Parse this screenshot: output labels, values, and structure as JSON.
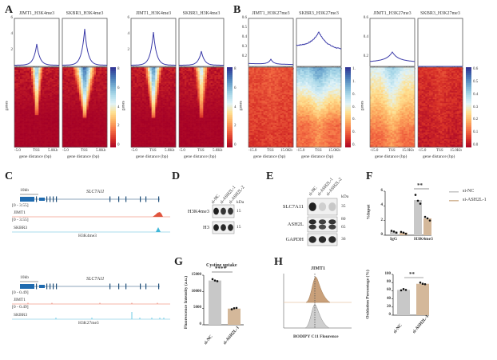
{
  "panels": {
    "A": {
      "label": "A",
      "profiles": [
        {
          "title": "JIMT1_H3K4me3",
          "peak": 2.8
        },
        {
          "title": "SKBR3_H3K4me3",
          "peak": 4.7
        },
        {
          "title": "JIMT1_H3K4me3",
          "peak": 4.3
        },
        {
          "title": "SKBR3_H3K4me3",
          "peak": 1.9
        }
      ],
      "yticks": [
        "6",
        "4",
        "2"
      ],
      "xticks": [
        "-5.0",
        "TSS",
        "5.0Kb"
      ],
      "xlabel": "gene distance (bp)",
      "ylabel": "genes",
      "colorbar_ticks_1": [
        "8",
        "6",
        "4",
        "2",
        "0"
      ],
      "colorbar_ticks_2": [
        "8",
        "6",
        "4",
        "2",
        "0"
      ]
    },
    "B": {
      "label": "B",
      "profiles": [
        {
          "title": "JIMT1_H3K27me3"
        },
        {
          "title": "SKBR3_H3K27me3"
        },
        {
          "title": "JIMT1_H3K27me3"
        },
        {
          "title": "SKBR3_H3K27me3"
        }
      ],
      "yticks_1": [
        "0.6",
        "0.5",
        "0.4",
        "0.3",
        "0.2"
      ],
      "yticks_2": [
        "0.6",
        "0.4",
        "0.2"
      ],
      "xticks": [
        "-15.0",
        "TSS",
        "15.0Kb"
      ],
      "xlabel": "gene distance (bp)",
      "ylabel": "genes",
      "colorbar_ticks_1": [
        "1.",
        "1.",
        "0.",
        "0.",
        "0.",
        "0.",
        "0."
      ],
      "colorbar_ticks_2": [
        "0.6",
        "0.5",
        "0.4",
        "0.3",
        "0.2",
        "0.1",
        "0.0"
      ]
    },
    "C": {
      "label": "C",
      "tracks_top": {
        "scale": "10kb",
        "gene": "SLC7A11",
        "range1": "[0 - 3.55]",
        "sample1": "JIMT1",
        "range2": "[0 - 3.55]",
        "sample2": "SKBR3",
        "mark": "H3K4me3"
      },
      "tracks_bottom": {
        "scale": "10kb",
        "gene": "SLC7A11",
        "range1": "[0 - 0.49]",
        "sample1": "JIMT1",
        "range2": "[0 - 0.49]",
        "sample2": "SKBR3",
        "mark": "H3K27me3"
      }
    },
    "D": {
      "label": "D",
      "lanes": [
        "si-NC",
        "si-ASH2L-1",
        "si-ASH2L-2"
      ],
      "kda_label": "kDa",
      "rows": [
        {
          "name": "H3K4me3",
          "kda": "15"
        },
        {
          "name": "H3",
          "kda": "15"
        }
      ]
    },
    "E": {
      "label": "E",
      "lanes": [
        "si-NC",
        "si-ASH2L-1",
        "si-ASH2L-2"
      ],
      "kda_label": "kDa",
      "rows": [
        {
          "name": "SLC7A11",
          "kda": "35"
        },
        {
          "name": "ASH2L",
          "kda": "80",
          "kda2": "65"
        },
        {
          "name": "GAPDH",
          "kda": "36"
        }
      ]
    },
    "F": {
      "label": "F"
    },
    "G": {
      "label": "G"
    },
    "H": {
      "label": "H",
      "flow_title": "JIMT1",
      "flow_xlabel": "BODIPY C11 Flourence"
    }
  },
  "chart_data": [
    {
      "id": "F",
      "type": "bar",
      "categories": [
        "IgG",
        "H3K4me3"
      ],
      "series": [
        {
          "name": "si-NC",
          "values": [
            0.5,
            4.8
          ],
          "color": "#c8c8c8",
          "points": [
            [
              0.6,
              0.5,
              0.35
            ],
            [
              5.5,
              4.7,
              4.3
            ]
          ]
        },
        {
          "name": "si-ASH2L-1",
          "values": [
            0.35,
            2.3
          ],
          "color": "#d4b89a",
          "points": [
            [
              0.45,
              0.35,
              0.2
            ],
            [
              2.5,
              2.3,
              2.0
            ]
          ]
        }
      ],
      "ylabel": "%Input",
      "ylim": [
        0,
        6
      ],
      "yticks": [
        "0",
        "2",
        "4",
        "6"
      ],
      "significance": "**",
      "legend": "top-right"
    },
    {
      "id": "G",
      "type": "bar",
      "title": "Cystine uptake",
      "categories": [
        "si-NC",
        "si-ASH2L-1"
      ],
      "values": [
        13400,
        4900
      ],
      "colors": [
        "#c8c8c8",
        "#d4b89a"
      ],
      "points": [
        [
          13800,
          13400,
          13200
        ],
        [
          4700,
          5000,
          5100
        ]
      ],
      "ylabel": "Fluorescence Intensity (a.u.)",
      "ylim": [
        0,
        15000
      ],
      "yticks": [
        "0",
        "5000",
        "10000",
        "15000"
      ],
      "significance": "****"
    },
    {
      "id": "H",
      "type": "bar",
      "categories": [
        "si-NC",
        "si-ASH2L-1"
      ],
      "values": [
        62,
        77
      ],
      "colors": [
        "#c8c8c8",
        "#d4b89a"
      ],
      "points": [
        [
          61,
          64,
          62
        ],
        [
          80,
          77,
          76
        ]
      ],
      "ylabel": "Oxidation Percentage (%)",
      "ylim": [
        0,
        100
      ],
      "yticks": [
        "0",
        "20",
        "40",
        "60",
        "80",
        "100"
      ],
      "significance": "**"
    }
  ]
}
